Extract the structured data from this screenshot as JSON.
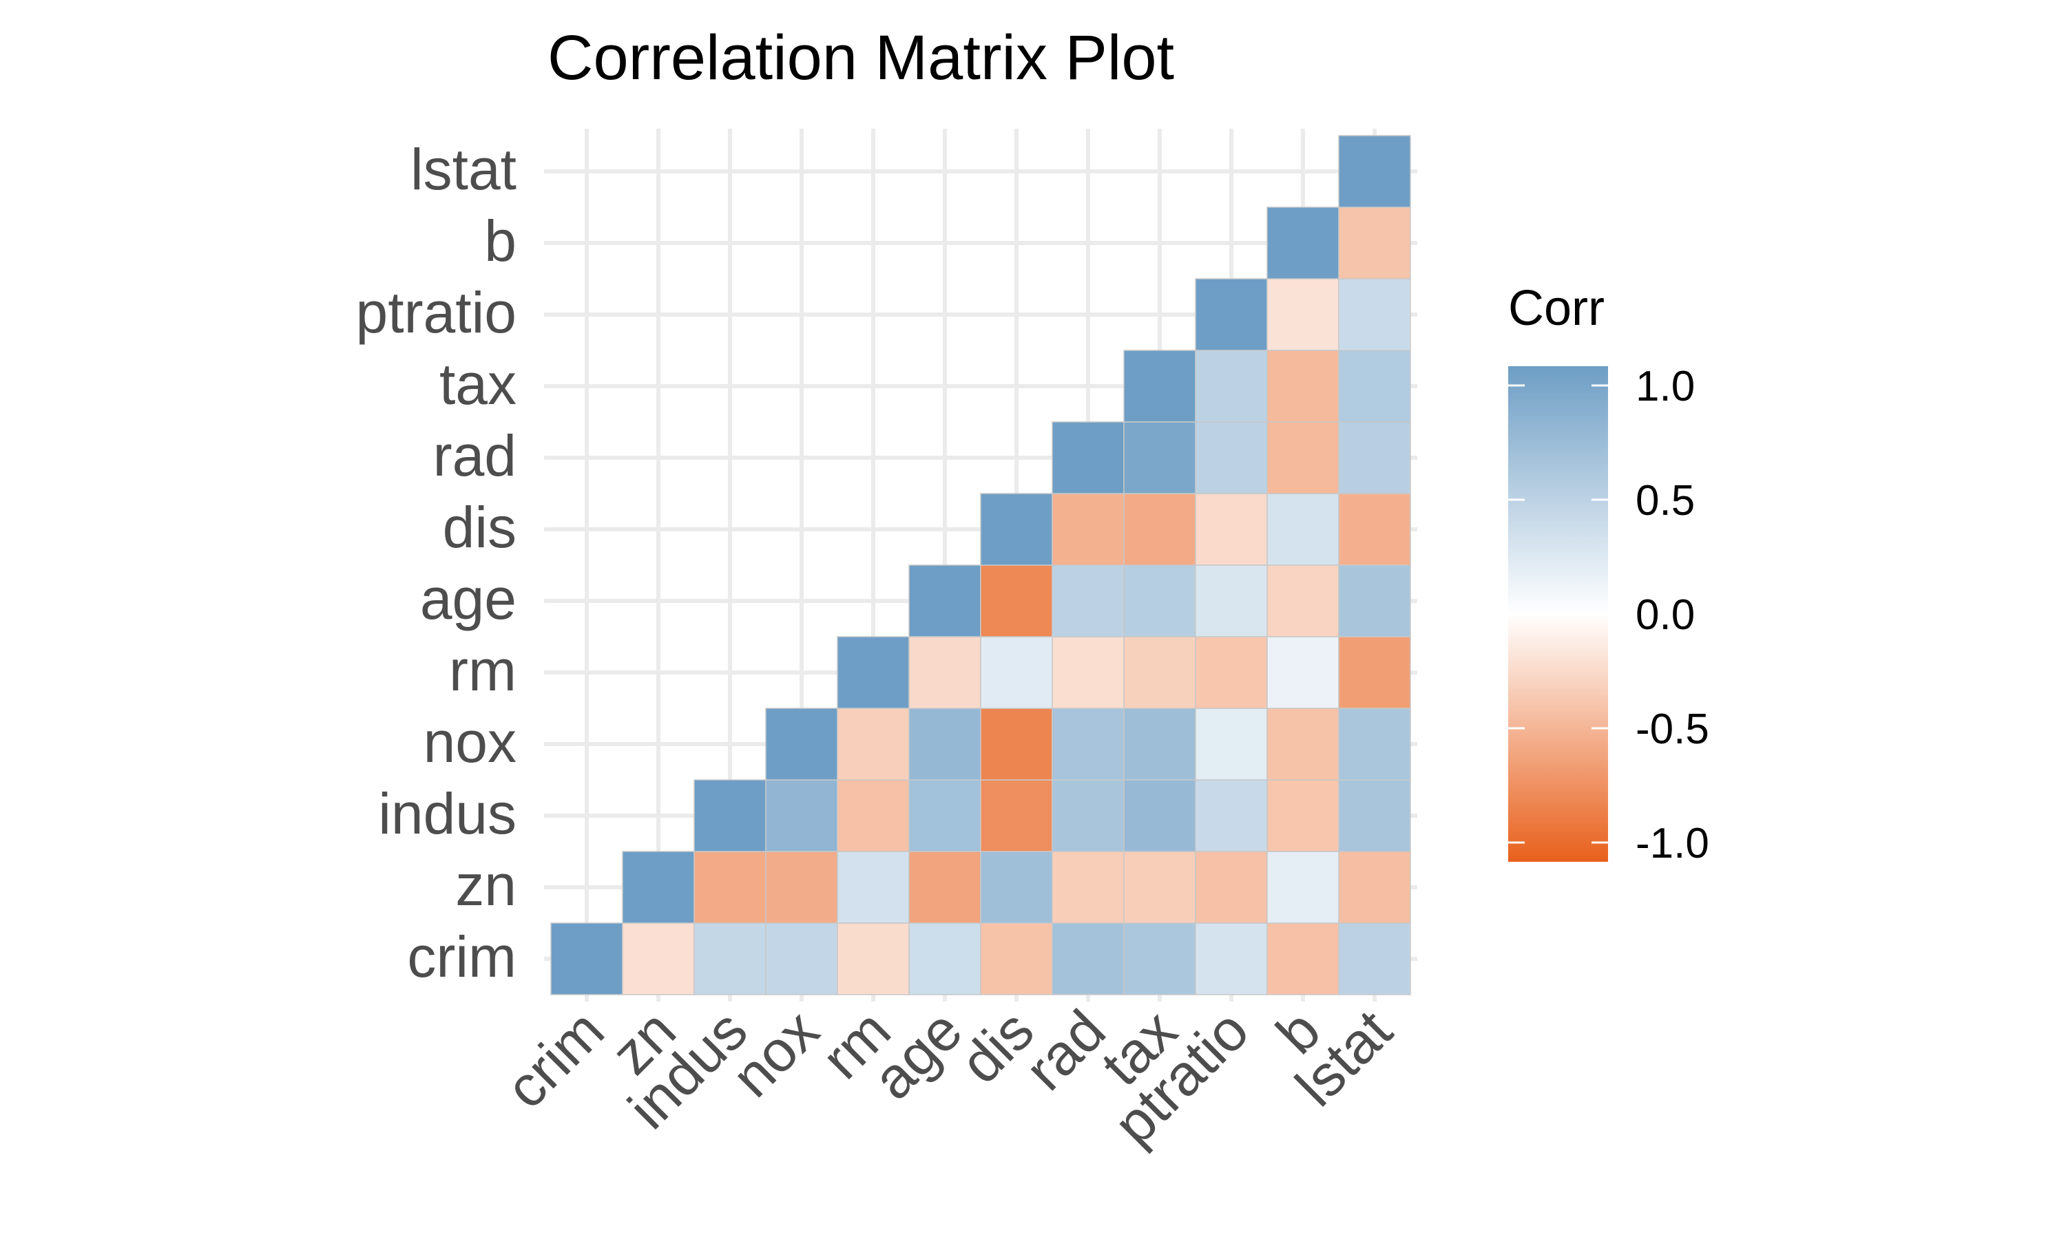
{
  "chart_data": {
    "type": "heatmap",
    "title": "Correlation Matrix Plot",
    "variables": [
      "crim",
      "zn",
      "indus",
      "nox",
      "rm",
      "age",
      "dis",
      "rad",
      "tax",
      "ptratio",
      "b",
      "lstat"
    ],
    "matrix": [
      [
        1.0
      ],
      [
        -0.2,
        1.0
      ],
      [
        0.41,
        -0.53,
        1.0
      ],
      [
        0.42,
        -0.52,
        0.76,
        1.0
      ],
      [
        -0.22,
        0.31,
        -0.39,
        -0.3,
        1.0
      ],
      [
        0.35,
        -0.57,
        0.64,
        0.73,
        -0.24,
        1.0
      ],
      [
        -0.38,
        0.66,
        -0.71,
        -0.77,
        0.21,
        -0.75,
        1.0
      ],
      [
        0.63,
        -0.31,
        0.6,
        0.61,
        -0.21,
        0.46,
        -0.49,
        1.0
      ],
      [
        0.58,
        -0.31,
        0.72,
        0.67,
        -0.29,
        0.51,
        -0.53,
        0.91,
        1.0
      ],
      [
        0.29,
        -0.39,
        0.38,
        0.19,
        -0.36,
        0.26,
        -0.23,
        0.46,
        0.46,
        1.0
      ],
      [
        -0.39,
        0.18,
        -0.36,
        -0.38,
        0.13,
        -0.27,
        0.29,
        -0.44,
        -0.44,
        -0.18,
        1.0
      ],
      [
        0.46,
        -0.41,
        0.6,
        0.59,
        -0.61,
        0.6,
        -0.5,
        0.49,
        0.54,
        0.37,
        -0.37,
        1.0
      ]
    ],
    "fill_range": [
      -1,
      1
    ],
    "colors": {
      "low": "#E8601C",
      "mid": "#FFFFFF",
      "high": "#6E9EC5"
    },
    "legend": {
      "title": "Corr",
      "position": "right",
      "ticks": [
        1.0,
        0.5,
        0.0,
        -0.5,
        -1.0
      ],
      "tick_labels": [
        "1.0",
        "0.5",
        "0.0",
        "-0.5",
        "-1.0"
      ]
    },
    "grid": true
  }
}
